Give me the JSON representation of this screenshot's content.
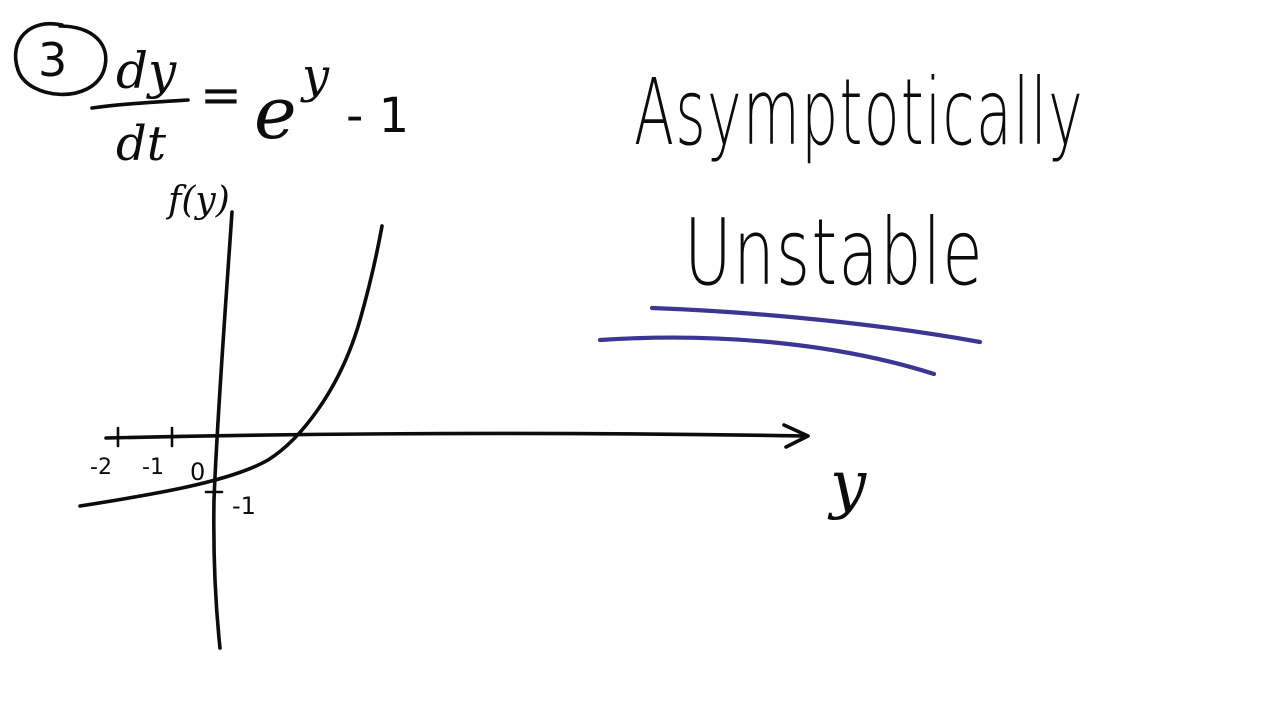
{
  "problem": {
    "number": "3",
    "lhs_numerator": "dy",
    "lhs_denominator": "dt",
    "equals": "=",
    "rhs_base": "e",
    "rhs_exponent": "y",
    "rhs_rest": "- 1"
  },
  "graph": {
    "y_axis_label": "f(y)",
    "x_axis_label": "y",
    "tick_labels": {
      "minus_two": "-2",
      "minus_one": "-1",
      "origin": "0",
      "y_minus_one": "-1"
    }
  },
  "conclusion": {
    "line1": "Asymptotically",
    "line2": "Unstable",
    "underline_color": "#3b3593"
  }
}
